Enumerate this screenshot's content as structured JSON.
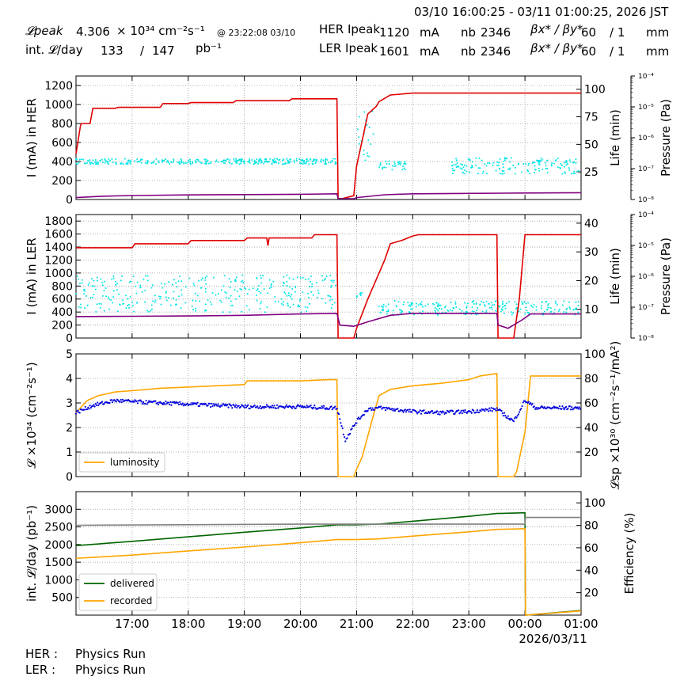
{
  "header": {
    "time_range": "03/10 16:00:25 - 03/11 01:00:25, 2026 JST",
    "lpeak_label": "𝓛peak",
    "lpeak_value": "4.306",
    "lpeak_unit": "× 10³⁴ cm⁻²s⁻¹",
    "lpeak_time": "@ 23:22:08 03/10",
    "intl_label": "int. 𝓛/day",
    "intl_value1": "133",
    "intl_sep": "/",
    "intl_value2": "147",
    "intl_unit": "pb⁻¹",
    "her_label": "HER Ipeak",
    "her_value": "1120",
    "her_unit": "mA",
    "ler_label": "LER Ipeak",
    "ler_value": "1601",
    "ler_unit": "mA",
    "nb_label": "nb",
    "her_nb": "2346",
    "ler_nb": "2346",
    "beta_label": "βx* / βy*",
    "her_beta_x": "60",
    "her_beta_y": "/ 1",
    "ler_beta_x": "60",
    "ler_beta_y": "/ 1",
    "beta_unit": "mm"
  },
  "footer": {
    "her_label": "HER :",
    "her_status": "Physics Run",
    "ler_label": "LER :",
    "ler_status": "Physics Run"
  },
  "x_axis": {
    "ticks": [
      "17:00",
      "18:00",
      "19:00",
      "20:00",
      "21:00",
      "22:00",
      "23:00",
      "00:00",
      "01:00"
    ],
    "date_label": "2026/03/11",
    "range_hours": [
      16.0,
      25.0
    ]
  },
  "colors": {
    "red": "#e00000",
    "purple": "#800080",
    "cyan": "#00e5e5",
    "orange": "#ffa500",
    "blue": "#0000dd",
    "green": "#006400",
    "gray": "#808080",
    "grid": "#999999"
  },
  "chart_data": [
    {
      "type": "line",
      "name": "HER",
      "ylabel": "I (mA) in HER",
      "ylim": [
        0,
        1300
      ],
      "yticks": [
        "0",
        "200",
        "400",
        "600",
        "800",
        "1000",
        "1200"
      ],
      "ylabel_right": "Life (min)",
      "ylim_right": [
        0,
        112
      ],
      "yticks_right": [
        "25",
        "50",
        "75",
        "100"
      ],
      "ylabel_pressure": "Pressure (Pa)",
      "pressure_ticks": [
        "10⁻⁴",
        "10⁻⁵",
        "10⁻⁶",
        "10⁻⁷",
        "10⁻⁸"
      ],
      "series": [
        {
          "color": "red",
          "x": [
            16.0,
            16.08,
            16.1,
            16.25,
            16.3,
            16.7,
            16.75,
            17.5,
            17.55,
            18.0,
            18.05,
            18.8,
            18.85,
            19.8,
            19.85,
            20.65,
            20.67,
            20.75,
            20.95,
            21.0,
            21.1,
            21.2,
            21.35,
            21.4,
            21.6,
            22.0,
            25.0
          ],
          "values": [
            480,
            780,
            800,
            800,
            960,
            960,
            970,
            970,
            1010,
            1010,
            1020,
            1020,
            1040,
            1040,
            1060,
            1060,
            10,
            10,
            40,
            350,
            620,
            900,
            980,
            1030,
            1100,
            1120,
            1120
          ]
        },
        {
          "color": "purple",
          "x": [
            16.0,
            16.5,
            17.0,
            18.0,
            19.0,
            20.0,
            20.65,
            20.67,
            20.95,
            21.0,
            21.5,
            22.0,
            23.0,
            24.0,
            25.0
          ],
          "values": [
            20,
            35,
            42,
            48,
            52,
            55,
            60,
            10,
            8,
            20,
            50,
            60,
            64,
            68,
            72
          ]
        }
      ],
      "scatter_right": {
        "color": "cyan",
        "note_clusters": [
          [
            16.0,
            20.65,
            32,
            37
          ],
          [
            21.0,
            21.3,
            35,
            80
          ],
          [
            21.4,
            21.9,
            27,
            35
          ],
          [
            22.7,
            25.0,
            23,
            38
          ]
        ]
      }
    },
    {
      "type": "line",
      "name": "LER",
      "ylabel": "I (mA) in LER",
      "ylim": [
        0,
        1900
      ],
      "yticks": [
        "0",
        "200",
        "400",
        "600",
        "800",
        "1000",
        "1200",
        "1400",
        "1600",
        "1800"
      ],
      "ylabel_right": "Life (min)",
      "ylim_right": [
        0,
        43
      ],
      "yticks_right": [
        "10",
        "20",
        "30",
        "40"
      ],
      "ylabel_pressure": "Pressure (Pa)",
      "pressure_ticks": [
        "10⁻⁴",
        "10⁻⁵",
        "10⁻⁶",
        "10⁻⁷",
        "10⁻⁸"
      ],
      "series": [
        {
          "color": "red",
          "x": [
            16.0,
            17.0,
            17.05,
            18.0,
            18.05,
            19.0,
            19.05,
            19.4,
            19.42,
            19.44,
            20.2,
            20.25,
            20.65,
            20.67,
            20.95,
            21.0,
            21.2,
            21.4,
            21.5,
            21.6,
            21.8,
            22.0,
            22.1,
            23.5,
            23.52,
            23.8,
            23.9,
            24.0,
            25.0
          ],
          "values": [
            1390,
            1390,
            1450,
            1450,
            1500,
            1500,
            1540,
            1540,
            1420,
            1540,
            1540,
            1590,
            1590,
            0,
            0,
            150,
            600,
            1000,
            1200,
            1450,
            1500,
            1570,
            1590,
            1590,
            0,
            0,
            600,
            1590,
            1590
          ]
        },
        {
          "color": "purple",
          "x": [
            16.0,
            17.0,
            18.0,
            19.0,
            20.0,
            20.65,
            20.7,
            20.95,
            21.2,
            21.6,
            22.0,
            23.5,
            23.52,
            23.7,
            23.95,
            24.1,
            25.0
          ],
          "values": [
            330,
            335,
            340,
            350,
            370,
            380,
            200,
            180,
            250,
            350,
            380,
            380,
            200,
            150,
            280,
            370,
            370
          ]
        }
      ],
      "scatter_right": {
        "color": "cyan",
        "note_clusters": [
          [
            16.0,
            20.65,
            9,
            22
          ],
          [
            21.0,
            21.1,
            14,
            16
          ],
          [
            21.4,
            25.0,
            8,
            13
          ]
        ]
      }
    },
    {
      "type": "line",
      "name": "Luminosity",
      "ylabel": "𝓛 ×10³⁴ (cm⁻²s⁻¹)",
      "ylim": [
        0,
        5
      ],
      "yticks": [
        "0",
        "1",
        "2",
        "3",
        "4",
        "5"
      ],
      "ylabel_right": "𝓛sp ×10³⁰ (cm⁻²s⁻¹/mA²)",
      "ylim_right": [
        0,
        100
      ],
      "yticks_right": [
        "20",
        "40",
        "60",
        "80",
        "100"
      ],
      "legend": [
        "luminosity"
      ],
      "series": [
        {
          "name": "luminosity",
          "color": "orange",
          "x": [
            16.0,
            16.2,
            16.4,
            16.7,
            17.0,
            17.5,
            18.0,
            18.5,
            19.0,
            19.05,
            19.5,
            20.0,
            20.5,
            20.65,
            20.67,
            20.95,
            21.0,
            21.1,
            21.3,
            21.4,
            21.6,
            22.0,
            22.5,
            23.0,
            23.2,
            23.5,
            23.52,
            23.8,
            23.85,
            24.0,
            24.1,
            25.0
          ],
          "values": [
            2.6,
            3.1,
            3.3,
            3.45,
            3.5,
            3.6,
            3.65,
            3.7,
            3.75,
            3.9,
            3.9,
            3.9,
            3.95,
            3.95,
            0,
            0,
            0.3,
            0.8,
            2.5,
            3.3,
            3.55,
            3.7,
            3.8,
            3.95,
            4.1,
            4.2,
            0,
            0,
            0.2,
            1.8,
            4.1,
            4.1
          ]
        },
        {
          "color": "blue",
          "x": [
            16.0,
            16.3,
            16.7,
            17.0,
            17.5,
            18.0,
            18.5,
            19.0,
            19.5,
            20.0,
            20.5,
            20.65,
            20.8,
            21.0,
            21.2,
            21.4,
            21.6,
            22.0,
            22.5,
            23.0,
            23.5,
            23.8,
            24.0,
            24.2,
            25.0
          ],
          "values": [
            52,
            58,
            62,
            61,
            60,
            59,
            58,
            57,
            57,
            57,
            56,
            56,
            30,
            45,
            55,
            56,
            55,
            53,
            52,
            53,
            55,
            45,
            62,
            56,
            56
          ]
        }
      ]
    },
    {
      "type": "line",
      "name": "Integrated luminosity",
      "ylabel": "int. 𝓛/day (pb⁻¹)",
      "ylim": [
        0,
        3500
      ],
      "yticks": [
        "500",
        "1000",
        "1500",
        "2000",
        "2500",
        "3000"
      ],
      "ylabel_right": "Efficiency (%)",
      "ylim_right": [
        0,
        110
      ],
      "yticks_right": [
        "20",
        "40",
        "60",
        "80",
        "100"
      ],
      "legend": [
        "delivered",
        "recorded"
      ],
      "series": [
        {
          "name": "delivered",
          "color": "green",
          "x": [
            16.0,
            17.0,
            18.0,
            19.0,
            20.0,
            20.65,
            21.0,
            21.4,
            22.0,
            23.0,
            23.5,
            24.0,
            24.01,
            25.0
          ],
          "values": [
            1970,
            2090,
            2220,
            2350,
            2470,
            2560,
            2560,
            2580,
            2660,
            2800,
            2880,
            2900,
            0,
            130
          ]
        },
        {
          "name": "recorded",
          "color": "orange",
          "x": [
            16.0,
            17.0,
            18.0,
            19.0,
            20.0,
            20.65,
            21.0,
            21.4,
            22.0,
            23.0,
            23.5,
            24.0,
            24.01,
            25.0
          ],
          "values": [
            1610,
            1700,
            1820,
            1930,
            2050,
            2140,
            2140,
            2160,
            2240,
            2360,
            2430,
            2450,
            0,
            120
          ]
        },
        {
          "name": "efficiency",
          "color": "gray",
          "x": [
            16.0,
            20.0,
            24.0,
            24.01,
            25.0
          ],
          "values_right": [
            80,
            81,
            81,
            87,
            87
          ]
        }
      ]
    }
  ]
}
